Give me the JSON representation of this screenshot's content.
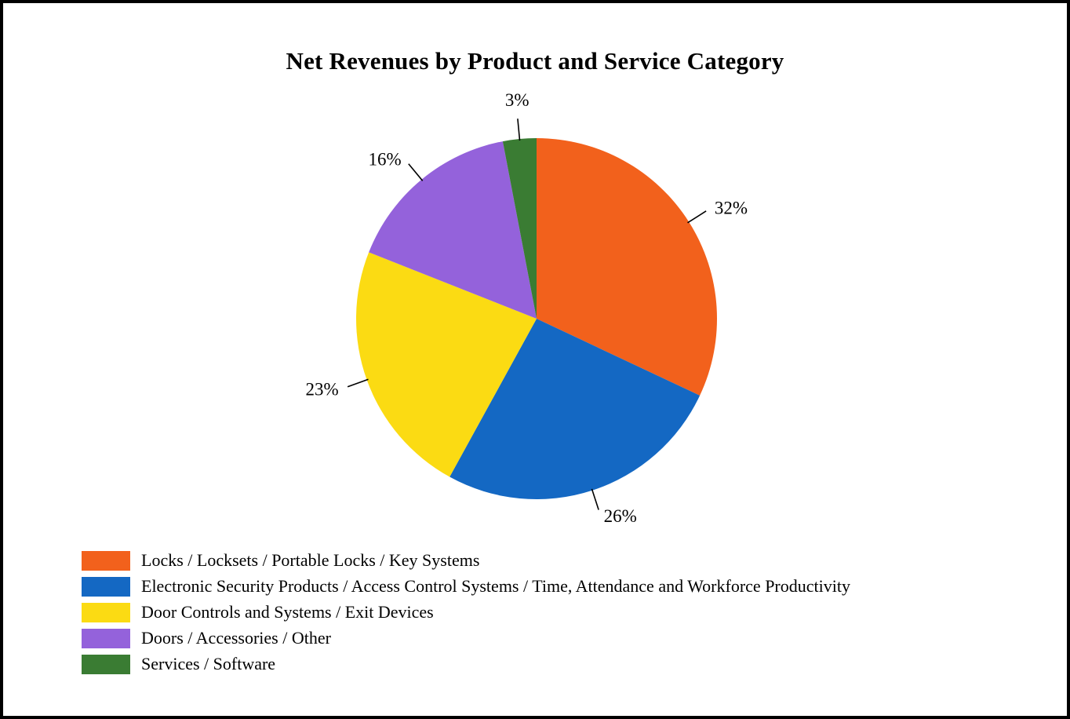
{
  "chart_data": {
    "type": "pie",
    "title": "Net Revenues by Product and Service Category",
    "direction": "clockwise",
    "start_angle_deg": 0,
    "legend_position": "bottom-left",
    "slices": [
      {
        "label": "Locks / Locksets / Portable Locks / Key Systems",
        "value": 32,
        "pct_label": "32%",
        "color": "#F2611C"
      },
      {
        "label": "Electronic Security Products / Access Control Systems / Time, Attendance and Workforce Productivity",
        "value": 26,
        "pct_label": "26%",
        "color": "#1468C3"
      },
      {
        "label": "Door Controls and Systems / Exit Devices",
        "value": 23,
        "pct_label": "23%",
        "color": "#FBDB13"
      },
      {
        "label": "Doors / Accessories / Other",
        "value": 16,
        "pct_label": "16%",
        "color": "#9462DB"
      },
      {
        "label": "Services / Software",
        "value": 3,
        "pct_label": "3%",
        "color": "#3A7C33"
      }
    ]
  }
}
